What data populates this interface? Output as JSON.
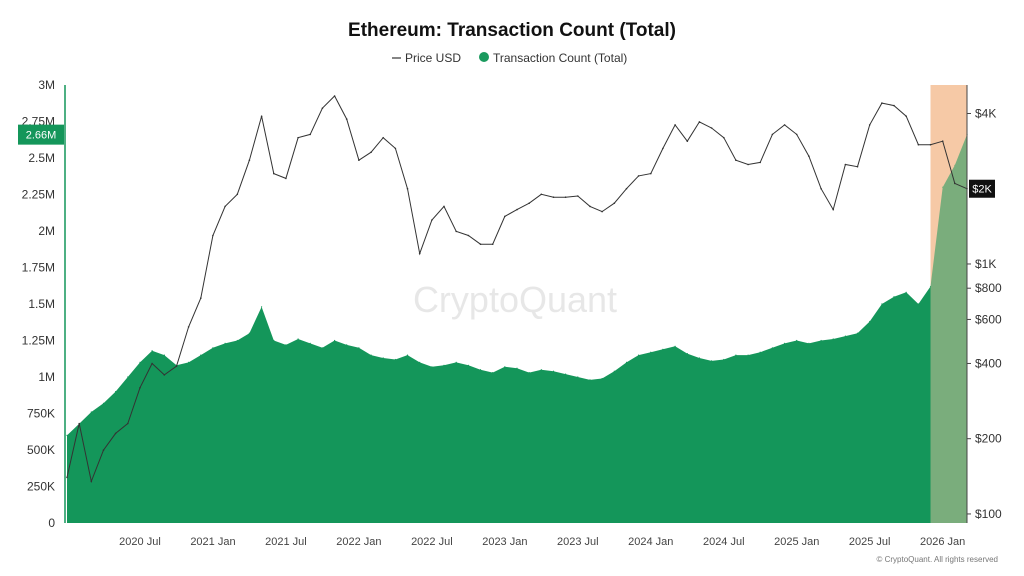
{
  "chart_data": {
    "type": "area",
    "title": "Ethereum: Transaction Count (Total)",
    "legend": {
      "position": "top-center",
      "items": [
        {
          "label": "Price USD",
          "marker": "line",
          "color": "#333333"
        },
        {
          "label": "Transaction Count (Total)",
          "marker": "dot",
          "color": "#1a9a5e"
        }
      ]
    },
    "left_axis": {
      "ticks": [
        {
          "value": 0,
          "label": "0"
        },
        {
          "value": 250000,
          "label": "250K"
        },
        {
          "value": 500000,
          "label": "500K"
        },
        {
          "value": 750000,
          "label": "750K"
        },
        {
          "value": 1000000,
          "label": "1M"
        },
        {
          "value": 1250000,
          "label": "1.25M"
        },
        {
          "value": 1500000,
          "label": "1.5M"
        },
        {
          "value": 1750000,
          "label": "1.75M"
        },
        {
          "value": 2000000,
          "label": "2M"
        },
        {
          "value": 2250000,
          "label": "2.25M"
        },
        {
          "value": 2500000,
          "label": "2.5M"
        },
        {
          "value": 2750000,
          "label": "2.75M"
        },
        {
          "value": 3000000,
          "label": "3M"
        }
      ],
      "ylim": [
        0,
        3000000
      ],
      "current_badge": {
        "value": 2660000,
        "label": "2.66M"
      }
    },
    "right_axis": {
      "scale": "log",
      "ticks": [
        {
          "value": 100,
          "label": "$100"
        },
        {
          "value": 200,
          "label": "$200"
        },
        {
          "value": 400,
          "label": "$400"
        },
        {
          "value": 600,
          "label": "$600"
        },
        {
          "value": 800,
          "label": "$800"
        },
        {
          "value": 1000,
          "label": "$1K"
        },
        {
          "value": 4000,
          "label": "$4K"
        }
      ],
      "ylim": [
        92,
        5200
      ],
      "current_badge": {
        "value": 2000,
        "label": "$2K"
      }
    },
    "x_axis": {
      "range": [
        "2020-01",
        "2026-03"
      ],
      "ticks": [
        {
          "date": "2020-07",
          "label": "2020 Jul"
        },
        {
          "date": "2021-01",
          "label": "2021 Jan"
        },
        {
          "date": "2021-07",
          "label": "2021 Jul"
        },
        {
          "date": "2022-01",
          "label": "2022 Jan"
        },
        {
          "date": "2022-07",
          "label": "2022 Jul"
        },
        {
          "date": "2023-01",
          "label": "2023 Jan"
        },
        {
          "date": "2023-07",
          "label": "2023 Jul"
        },
        {
          "date": "2024-01",
          "label": "2024 Jan"
        },
        {
          "date": "2024-07",
          "label": "2024 Jul"
        },
        {
          "date": "2025-01",
          "label": "2025 Jan"
        },
        {
          "date": "2025-07",
          "label": "2025 Jul"
        },
        {
          "date": "2026-01",
          "label": "2026 Jan"
        }
      ]
    },
    "highlight_region": {
      "start": "2025-12",
      "end": "2026-03",
      "color": "#f6c9a6"
    },
    "series": [
      {
        "name": "Transaction Count (Total)",
        "axis": "left",
        "kind": "area",
        "color": "#14965a",
        "points": [
          [
            "2020-01",
            600000
          ],
          [
            "2020-02",
            680000
          ],
          [
            "2020-03",
            760000
          ],
          [
            "2020-04",
            820000
          ],
          [
            "2020-05",
            900000
          ],
          [
            "2020-06",
            1000000
          ],
          [
            "2020-07",
            1100000
          ],
          [
            "2020-08",
            1180000
          ],
          [
            "2020-09",
            1150000
          ],
          [
            "2020-10",
            1080000
          ],
          [
            "2020-11",
            1100000
          ],
          [
            "2020-12",
            1150000
          ],
          [
            "2021-01",
            1200000
          ],
          [
            "2021-02",
            1230000
          ],
          [
            "2021-03",
            1250000
          ],
          [
            "2021-04",
            1300000
          ],
          [
            "2021-05",
            1480000
          ],
          [
            "2021-06",
            1250000
          ],
          [
            "2021-07",
            1220000
          ],
          [
            "2021-08",
            1260000
          ],
          [
            "2021-09",
            1230000
          ],
          [
            "2021-10",
            1200000
          ],
          [
            "2021-11",
            1250000
          ],
          [
            "2021-12",
            1220000
          ],
          [
            "2022-01",
            1200000
          ],
          [
            "2022-02",
            1150000
          ],
          [
            "2022-03",
            1130000
          ],
          [
            "2022-04",
            1120000
          ],
          [
            "2022-05",
            1150000
          ],
          [
            "2022-06",
            1100000
          ],
          [
            "2022-07",
            1070000
          ],
          [
            "2022-08",
            1080000
          ],
          [
            "2022-09",
            1100000
          ],
          [
            "2022-10",
            1080000
          ],
          [
            "2022-11",
            1050000
          ],
          [
            "2022-12",
            1030000
          ],
          [
            "2023-01",
            1070000
          ],
          [
            "2023-02",
            1060000
          ],
          [
            "2023-03",
            1030000
          ],
          [
            "2023-04",
            1050000
          ],
          [
            "2023-05",
            1040000
          ],
          [
            "2023-06",
            1020000
          ],
          [
            "2023-07",
            1000000
          ],
          [
            "2023-08",
            980000
          ],
          [
            "2023-09",
            990000
          ],
          [
            "2023-10",
            1040000
          ],
          [
            "2023-11",
            1100000
          ],
          [
            "2023-12",
            1150000
          ],
          [
            "2024-01",
            1170000
          ],
          [
            "2024-02",
            1190000
          ],
          [
            "2024-03",
            1210000
          ],
          [
            "2024-04",
            1160000
          ],
          [
            "2024-05",
            1130000
          ],
          [
            "2024-06",
            1110000
          ],
          [
            "2024-07",
            1120000
          ],
          [
            "2024-08",
            1150000
          ],
          [
            "2024-09",
            1150000
          ],
          [
            "2024-10",
            1170000
          ],
          [
            "2024-11",
            1200000
          ],
          [
            "2024-12",
            1230000
          ],
          [
            "2025-01",
            1250000
          ],
          [
            "2025-02",
            1230000
          ],
          [
            "2025-03",
            1250000
          ],
          [
            "2025-04",
            1260000
          ],
          [
            "2025-05",
            1280000
          ],
          [
            "2025-06",
            1300000
          ],
          [
            "2025-07",
            1380000
          ],
          [
            "2025-08",
            1500000
          ],
          [
            "2025-09",
            1550000
          ],
          [
            "2025-10",
            1580000
          ],
          [
            "2025-11",
            1500000
          ],
          [
            "2025-12",
            1620000
          ],
          [
            "2026-01",
            2300000
          ],
          [
            "2026-02",
            2450000
          ],
          [
            "2026-03",
            2660000
          ]
        ]
      },
      {
        "name": "Price USD",
        "axis": "right",
        "kind": "line",
        "color": "#333333",
        "points": [
          [
            "2020-01",
            140
          ],
          [
            "2020-02",
            230
          ],
          [
            "2020-03",
            135
          ],
          [
            "2020-04",
            180
          ],
          [
            "2020-05",
            210
          ],
          [
            "2020-06",
            230
          ],
          [
            "2020-07",
            320
          ],
          [
            "2020-08",
            400
          ],
          [
            "2020-09",
            360
          ],
          [
            "2020-10",
            390
          ],
          [
            "2020-11",
            560
          ],
          [
            "2020-12",
            730
          ],
          [
            "2021-01",
            1300
          ],
          [
            "2021-02",
            1700
          ],
          [
            "2021-03",
            1900
          ],
          [
            "2021-04",
            2600
          ],
          [
            "2021-05",
            3900
          ],
          [
            "2021-06",
            2300
          ],
          [
            "2021-07",
            2200
          ],
          [
            "2021-08",
            3200
          ],
          [
            "2021-09",
            3300
          ],
          [
            "2021-10",
            4200
          ],
          [
            "2021-11",
            4700
          ],
          [
            "2021-12",
            3800
          ],
          [
            "2022-01",
            2600
          ],
          [
            "2022-02",
            2800
          ],
          [
            "2022-03",
            3200
          ],
          [
            "2022-04",
            2900
          ],
          [
            "2022-05",
            2000
          ],
          [
            "2022-06",
            1100
          ],
          [
            "2022-07",
            1500
          ],
          [
            "2022-08",
            1700
          ],
          [
            "2022-09",
            1350
          ],
          [
            "2022-10",
            1300
          ],
          [
            "2022-11",
            1200
          ],
          [
            "2022-12",
            1200
          ],
          [
            "2023-01",
            1550
          ],
          [
            "2023-02",
            1650
          ],
          [
            "2023-03",
            1750
          ],
          [
            "2023-04",
            1900
          ],
          [
            "2023-05",
            1850
          ],
          [
            "2023-06",
            1850
          ],
          [
            "2023-07",
            1870
          ],
          [
            "2023-08",
            1700
          ],
          [
            "2023-09",
            1620
          ],
          [
            "2023-10",
            1750
          ],
          [
            "2023-11",
            2000
          ],
          [
            "2023-12",
            2250
          ],
          [
            "2024-01",
            2300
          ],
          [
            "2024-02",
            2900
          ],
          [
            "2024-03",
            3600
          ],
          [
            "2024-04",
            3100
          ],
          [
            "2024-05",
            3700
          ],
          [
            "2024-06",
            3500
          ],
          [
            "2024-07",
            3200
          ],
          [
            "2024-08",
            2600
          ],
          [
            "2024-09",
            2500
          ],
          [
            "2024-10",
            2550
          ],
          [
            "2024-11",
            3300
          ],
          [
            "2024-12",
            3600
          ],
          [
            "2025-01",
            3300
          ],
          [
            "2025-02",
            2700
          ],
          [
            "2025-03",
            2000
          ],
          [
            "2025-04",
            1650
          ],
          [
            "2025-05",
            2500
          ],
          [
            "2025-06",
            2450
          ],
          [
            "2025-07",
            3600
          ],
          [
            "2025-08",
            4400
          ],
          [
            "2025-09",
            4300
          ],
          [
            "2025-10",
            3900
          ],
          [
            "2025-11",
            3000
          ],
          [
            "2025-12",
            3000
          ],
          [
            "2026-01",
            3100
          ],
          [
            "2026-02",
            2100
          ],
          [
            "2026-03",
            2000
          ]
        ]
      }
    ],
    "watermark": "CryptoQuant",
    "copyright": "© CryptoQuant. All rights reserved"
  }
}
